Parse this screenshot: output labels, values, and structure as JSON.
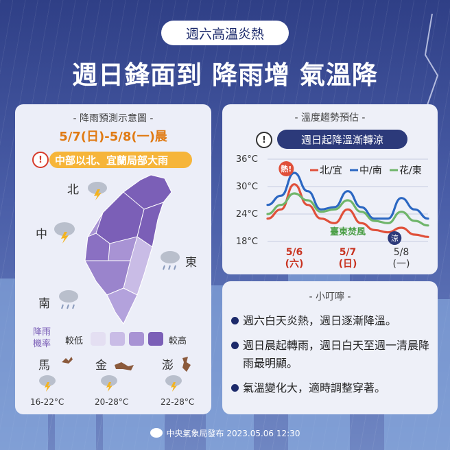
{
  "header": {
    "tag": "週六高溫炎熱",
    "title": "週日鋒面到 降雨增 氣溫降"
  },
  "left_card": {
    "header": "- 降雨預測示意圖 -",
    "date": "5/7(日)-5/8(一)晨",
    "alert_icon": "!",
    "alert_text": "中部以北、宜蘭局部大雨",
    "regions": {
      "north": "北",
      "central": "中",
      "east": "東",
      "south": "南"
    },
    "legend": {
      "label_line1": "降雨",
      "label_line2": "機率",
      "low": "較低",
      "high": "較高",
      "colors": [
        "#e4dff2",
        "#c9bce6",
        "#a893d4",
        "#7b5fb7"
      ]
    },
    "islands": [
      {
        "name": "馬",
        "temp": "16-22°C"
      },
      {
        "name": "金",
        "temp": "20-28°C"
      },
      {
        "name": "澎",
        "temp": "22-28°C"
      }
    ]
  },
  "right_card": {
    "header": "- 溫度趨勢預估 -",
    "alert_icon": "!",
    "alert_text": "週日起降溫漸轉涼",
    "hot_badge": "熱!",
    "cool_badge": "涼",
    "foehn_label": "臺東焚風"
  },
  "tips_card": {
    "header": "- 小叮嚀 -",
    "items": [
      "週六白天炎熱，週日逐漸降溫。",
      "週日晨起轉雨，週日白天至週一清晨降雨最明顯。",
      "氣溫變化大，適時調整穿著。"
    ]
  },
  "footer": {
    "text": "中央氣象局發布 2023.05.06 12:30"
  },
  "chart_data": {
    "type": "line",
    "y_ticks": [
      "36°C",
      "30°C",
      "24°C",
      "18°C"
    ],
    "ylim": [
      18,
      36
    ],
    "x_ticks": [
      {
        "date": "5/6",
        "day": "(六)",
        "x": 1
      },
      {
        "date": "5/7",
        "day": "(日)",
        "x": 3
      },
      {
        "date": "5/8",
        "day": "(一)",
        "x": 5
      }
    ],
    "x_domain": [
      0,
      6
    ],
    "series": [
      {
        "name": "北/宜",
        "color": "#e0503a",
        "x": [
          0,
          0.5,
          1,
          1.5,
          2,
          2.5,
          3,
          3.5,
          4,
          4.5,
          5,
          5.5,
          6
        ],
        "values": [
          23,
          25,
          30.5,
          26,
          23,
          22,
          25,
          22,
          20.5,
          20,
          21,
          19.5,
          19
        ]
      },
      {
        "name": "中/南",
        "color": "#2b67c2",
        "x": [
          0,
          0.5,
          1,
          1.5,
          2,
          2.5,
          3,
          3.5,
          4,
          4.5,
          5,
          5.5,
          6
        ],
        "values": [
          26,
          28,
          33,
          29,
          25,
          25.5,
          29,
          25.5,
          23,
          23,
          27.5,
          25,
          23
        ]
      },
      {
        "name": "花/東",
        "color": "#6fb56a",
        "x": [
          0,
          0.5,
          1,
          1.5,
          2,
          2.5,
          3,
          3.5,
          4,
          4.5,
          5,
          5.5,
          6
        ],
        "values": [
          24,
          26,
          28.5,
          27,
          24.5,
          25,
          27,
          24.5,
          22.5,
          22,
          24.5,
          22.5,
          21.5
        ]
      }
    ]
  }
}
